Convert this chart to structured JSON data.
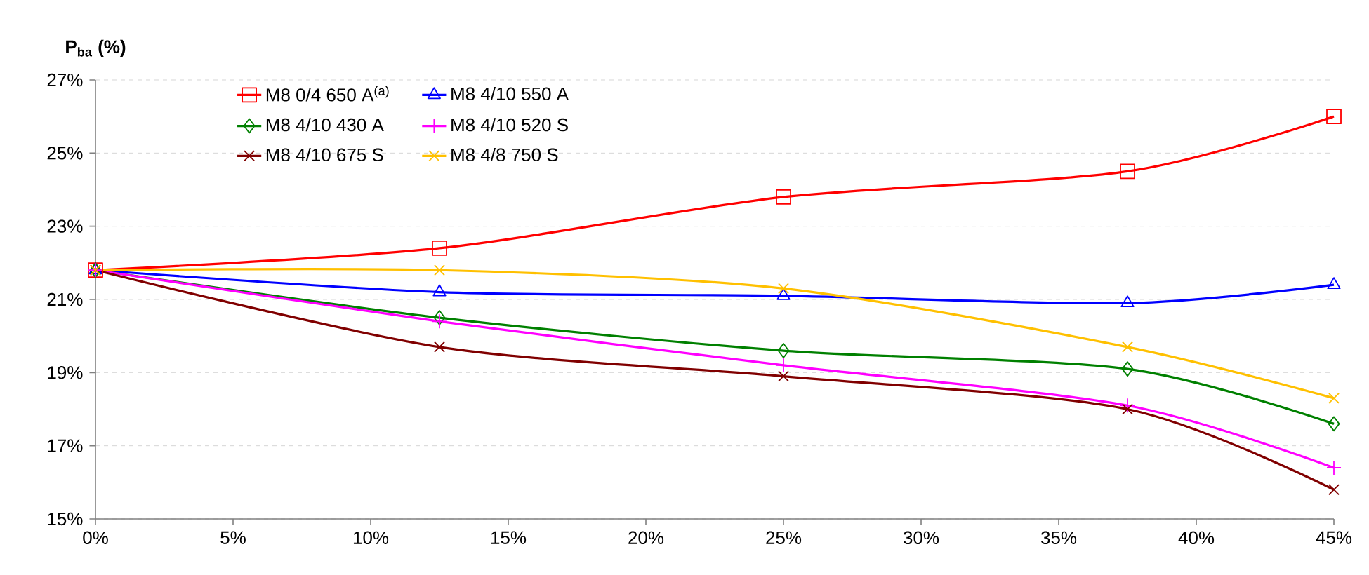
{
  "chart_data": {
    "type": "line",
    "ylabel": "P$_{ba}$ (%)",
    "x": [
      0,
      12.5,
      25,
      37.5,
      45
    ],
    "series": [
      {
        "name": "M8 0/4 650 A$^{(a)}$",
        "color": "#ff0000",
        "marker": "square",
        "values": [
          21.8,
          22.4,
          23.8,
          24.5,
          26.0
        ]
      },
      {
        "name": "M8 4/10 550 A",
        "color": "#0000ff",
        "marker": "triangle",
        "values": [
          21.8,
          21.2,
          21.1,
          20.9,
          21.4
        ]
      },
      {
        "name": "M8 4/10 430 A",
        "color": "#008000",
        "marker": "diamond",
        "values": [
          21.8,
          20.5,
          19.6,
          19.1,
          17.6
        ]
      },
      {
        "name": "M8 4/10 520 S",
        "color": "#ff00ff",
        "marker": "plus",
        "values": [
          21.8,
          20.4,
          19.2,
          18.1,
          16.4
        ]
      },
      {
        "name": "M8 4/10 675 S",
        "color": "#800000",
        "marker": "cross",
        "values": [
          21.8,
          19.7,
          18.9,
          18.0,
          15.8
        ]
      },
      {
        "name": "M8 4/8 750 S",
        "color": "#ffc000",
        "marker": "cross",
        "values": [
          21.8,
          21.8,
          21.3,
          19.7,
          18.3
        ]
      }
    ],
    "xlim": [
      0,
      45
    ],
    "xticks": [
      {
        "value": 0,
        "label": "0%"
      },
      {
        "value": 5,
        "label": "5%"
      },
      {
        "value": 10,
        "label": "10%"
      },
      {
        "value": 15,
        "label": "15%"
      },
      {
        "value": 20,
        "label": "20%"
      },
      {
        "value": 25,
        "label": "25%"
      },
      {
        "value": 30,
        "label": "30%"
      },
      {
        "value": 35,
        "label": "35%"
      },
      {
        "value": 40,
        "label": "40%"
      },
      {
        "value": 45,
        "label": "45%"
      }
    ],
    "ylim": [
      15,
      27
    ],
    "yticks": [
      {
        "value": 15,
        "label": "15%"
      },
      {
        "value": 17,
        "label": "17%"
      },
      {
        "value": 19,
        "label": "19%"
      },
      {
        "value": 21,
        "label": "21%"
      },
      {
        "value": 23,
        "label": "23%"
      },
      {
        "value": 25,
        "label": "25%"
      },
      {
        "value": 27,
        "label": "27%"
      }
    ],
    "grid": "y",
    "legend": "top",
    "line_style": "solid"
  }
}
